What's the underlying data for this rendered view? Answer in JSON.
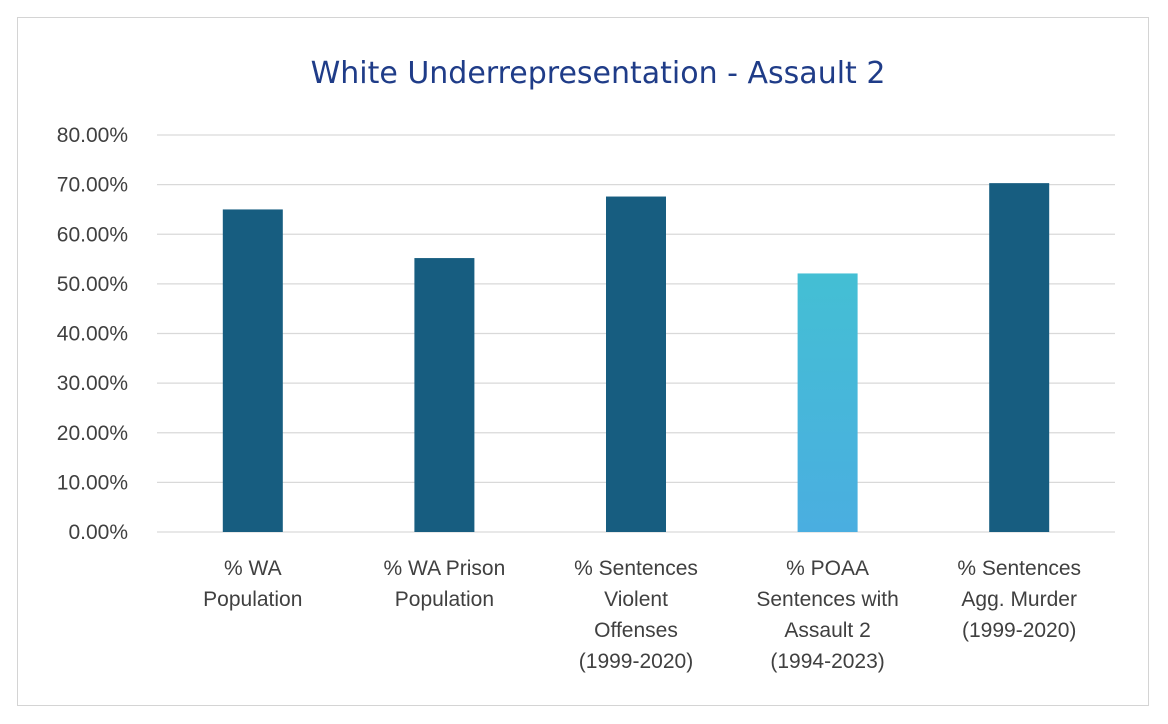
{
  "chart_data": {
    "type": "bar",
    "title": "White Underrepresentation - Assault 2",
    "xlabel": "",
    "ylabel": "",
    "ylim": [
      0,
      0.8
    ],
    "y_tick_values": [
      0,
      0.1,
      0.2,
      0.3,
      0.4,
      0.5,
      0.6,
      0.7,
      0.8
    ],
    "y_tick_labels": [
      "0.00%",
      "10.00%",
      "20.00%",
      "30.00%",
      "40.00%",
      "50.00%",
      "60.00%",
      "70.00%",
      "80.00%"
    ],
    "grid": true,
    "legend": "none",
    "categories": [
      [
        "% WA",
        "Population"
      ],
      [
        "% WA Prison",
        "Population"
      ],
      [
        "% Sentences",
        "Violent",
        "Offenses",
        "(1999-2020)"
      ],
      [
        "% POAA",
        "Sentences with",
        "Assault 2",
        "(1994-2023)"
      ],
      [
        "% Sentences",
        "Agg. Murder",
        "(1999-2020)"
      ]
    ],
    "values": [
      0.65,
      0.552,
      0.676,
      0.521,
      0.703
    ],
    "highlight_index": 3,
    "colors": {
      "bar": "#175d80",
      "highlight_top": "#44bfd4",
      "highlight_bottom": "#4aaee0",
      "title": "#1f3c88",
      "tick_text": "#404040",
      "grid": "#d9d9d9"
    }
  }
}
